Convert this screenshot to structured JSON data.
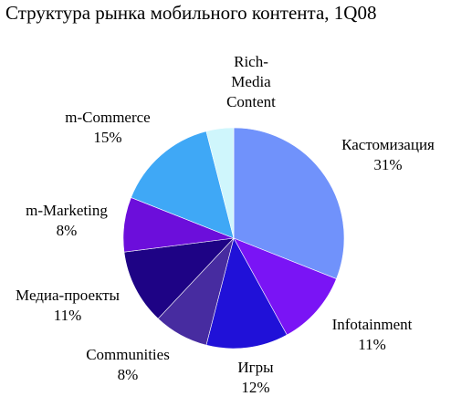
{
  "chart_data": {
    "type": "pie",
    "title": "Структура рынка мобильного контента, 1Q08",
    "slices": [
      {
        "name": "Кастомизация",
        "value": 31,
        "value_label": "31%",
        "color": "#7092FB"
      },
      {
        "name": "Infotainment",
        "value": 11,
        "value_label": "11%",
        "color": "#7A14F5"
      },
      {
        "name": "Игры",
        "value": 12,
        "value_label": "12%",
        "color": "#2011D8"
      },
      {
        "name": "Communities",
        "value": 8,
        "value_label": "8%",
        "color": "#472CA0"
      },
      {
        "name": "Медиа-проекты",
        "value": 11,
        "value_label": "11%",
        "color": "#1E0385"
      },
      {
        "name": "m-Marketing",
        "value": 8,
        "value_label": "8%",
        "color": "#6C0EDB"
      },
      {
        "name": "m-Commerce",
        "value": 15,
        "value_label": "15%",
        "color": "#3FA8F6"
      },
      {
        "name_lines": [
          "Rich-",
          "Media",
          "Content"
        ],
        "value": 4,
        "color": "#CFF6FC"
      }
    ]
  }
}
